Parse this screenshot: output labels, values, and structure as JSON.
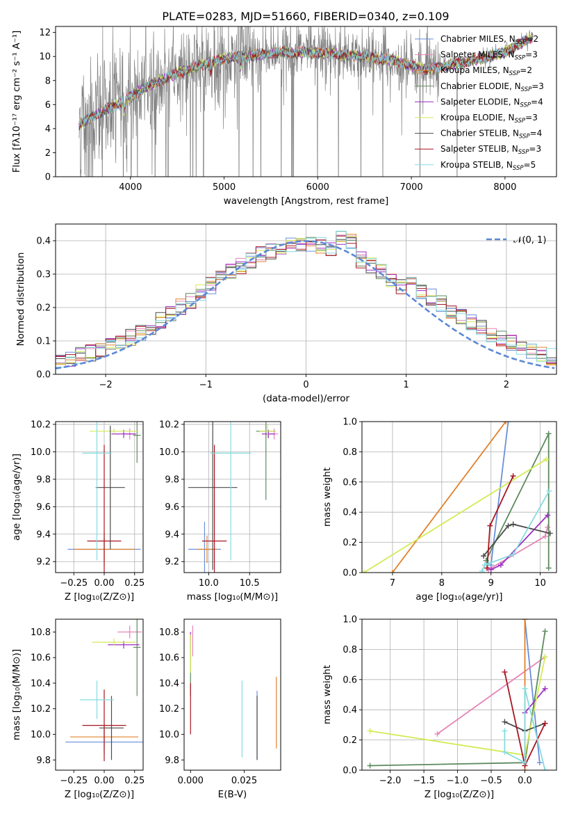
{
  "title": "PLATE=0283, MJD=51660, FIBERID=0340, z=0.109",
  "colors": {
    "Chabrier MILES": "#6a8fd9",
    "Salpeter MILES": "#e784b6",
    "Kroupa MILES": "#e0812a",
    "Chabrier ELODIE": "#5d8a5e",
    "Salpeter ELODIE": "#9b2fc4",
    "Kroupa ELODIE": "#d4ea55",
    "Chabrier STELIB": "#4a4a4a",
    "Salpeter STELIB": "#a81520",
    "Kroupa STELIB": "#86dbe0",
    "data": "#808080",
    "normal": "#5b88d6"
  },
  "legend": [
    {
      "imf": "Chabrier MILES",
      "n": "2"
    },
    {
      "imf": "Salpeter MILES",
      "n": "3"
    },
    {
      "imf": "Kroupa MILES",
      "n": "2"
    },
    {
      "imf": "Chabrier ELODIE",
      "n": "3"
    },
    {
      "imf": "Salpeter ELODIE",
      "n": "4"
    },
    {
      "imf": "Kroupa ELODIE",
      "n": "3"
    },
    {
      "imf": "Chabrier STELIB",
      "n": "4"
    },
    {
      "imf": "Salpeter STELIB",
      "n": "3"
    },
    {
      "imf": "Kroupa STELIB",
      "n": "5"
    }
  ],
  "chart_data": [
    {
      "type": "line",
      "panel": "spectrum",
      "title": "PLATE=0283, MJD=51660, FIBERID=0340, z=0.109",
      "xlabel": "wavelength [Angstrom, rest frame]",
      "ylabel": "Flux [fλ10⁻¹⁷ erg cm⁻² s⁻¹ A⁻¹]",
      "xlim": [
        3200,
        8550
      ],
      "ylim": [
        0,
        12.5
      ],
      "xticks": [
        "4000",
        "5000",
        "6000",
        "7000",
        "8000"
      ],
      "yticks": [
        "0",
        "2",
        "4",
        "6",
        "8",
        "10",
        "12"
      ],
      "continuum": {
        "x": [
          3450,
          3600,
          3800,
          4000,
          4200,
          4500,
          4800,
          5000,
          5300,
          5600,
          5900,
          6200,
          6500,
          6800,
          7000,
          7200,
          7400,
          7600,
          7800,
          8000,
          8150,
          8300
        ],
        "y": [
          4.3,
          5.0,
          5.8,
          6.6,
          7.6,
          8.6,
          9.4,
          9.8,
          10.1,
          10.3,
          10.35,
          10.2,
          10.0,
          9.7,
          9.2,
          8.9,
          9.3,
          9.6,
          9.9,
          10.4,
          11.0,
          11.6
        ]
      }
    },
    {
      "type": "line",
      "panel": "residual-distribution",
      "xlabel": "(data-model)/error",
      "ylabel": "Normed distribution",
      "xlim": [
        -2.5,
        2.5
      ],
      "ylim": [
        0,
        0.45
      ],
      "xticks": [
        "−2",
        "−1",
        "0",
        "1",
        "2"
      ],
      "yticks": [
        "0.0",
        "0.1",
        "0.2",
        "0.3",
        "0.4"
      ],
      "normal_label": "𝒩(0, 1)",
      "grid": true
    },
    {
      "type": "scatter",
      "panel": "age-vs-Z",
      "xlabel": "Z [log₁₀(Z/Z⊙)]",
      "ylabel": "age  [log₁₀(age/yr)]",
      "xlim": [
        -0.4,
        0.32
      ],
      "ylim": [
        9.12,
        10.22
      ],
      "xticks": [
        "−0.25",
        "0.00",
        "0.25"
      ],
      "yticks": [
        "9.2",
        "9.4",
        "9.6",
        "9.8",
        "10.0",
        "10.2"
      ],
      "points": [
        {
          "model": "Chabrier MILES",
          "x": 0.0,
          "y": 9.29,
          "xerr": 0.3,
          "yerr": 0.08
        },
        {
          "model": "Salpeter MILES",
          "x": 0.21,
          "y": 10.13,
          "xerr": 0.05,
          "yerr": 0.04
        },
        {
          "model": "Kroupa MILES",
          "x": 0.0,
          "y": 9.29,
          "xerr": 0.25,
          "yerr": 0.12
        },
        {
          "model": "Chabrier ELODIE",
          "x": 0.27,
          "y": 10.12,
          "xerr": 0.03,
          "yerr": 0.2
        },
        {
          "model": "Salpeter ELODIE",
          "x": 0.16,
          "y": 10.13,
          "xerr": 0.1,
          "yerr": 0.03
        },
        {
          "model": "Kroupa ELODIE",
          "x": 0.08,
          "y": 10.15,
          "xerr": 0.2,
          "yerr": 0.02
        },
        {
          "model": "Chabrier STELIB",
          "x": 0.05,
          "y": 9.74,
          "xerr": 0.12,
          "yerr": 0.45
        },
        {
          "model": "Salpeter STELIB",
          "x": 0.0,
          "y": 9.35,
          "xerr": 0.14,
          "yerr": 0.7
        },
        {
          "model": "Kroupa STELIB",
          "x": -0.06,
          "y": 9.99,
          "xerr": 0.12,
          "yerr": 0.78
        }
      ]
    },
    {
      "type": "scatter",
      "panel": "age-vs-mass",
      "xlabel": "mass [log₁₀(M/M⊙)]",
      "xlim": [
        9.7,
        10.88
      ],
      "ylim": [
        9.12,
        10.22
      ],
      "xticks": [
        "10.0",
        "10.5"
      ],
      "yticks": [
        "9.2",
        "9.4",
        "9.6",
        "9.8",
        "10.0",
        "10.2"
      ],
      "points": [
        {
          "model": "Chabrier MILES",
          "x": 9.95,
          "y": 9.29,
          "xerr": 0.2,
          "yerr": 0.2
        },
        {
          "model": "Salpeter MILES",
          "x": 10.8,
          "y": 10.13,
          "xerr": 0.05,
          "yerr": 0.04
        },
        {
          "model": "Kroupa MILES",
          "x": 9.98,
          "y": 9.29,
          "xerr": 0.12,
          "yerr": 0.1
        },
        {
          "model": "Chabrier ELODIE",
          "x": 10.7,
          "y": 10.15,
          "xerr": 0.12,
          "yerr": 0.5
        },
        {
          "model": "Salpeter ELODIE",
          "x": 10.73,
          "y": 10.13,
          "xerr": 0.08,
          "yerr": 0.03
        },
        {
          "model": "Kroupa ELODIE",
          "x": 10.72,
          "y": 10.15,
          "xerr": 0.1,
          "yerr": 0.05
        },
        {
          "model": "Chabrier STELIB",
          "x": 10.05,
          "y": 9.74,
          "xerr": 0.3,
          "yerr": 0.6
        },
        {
          "model": "Salpeter STELIB",
          "x": 10.07,
          "y": 9.35,
          "xerr": 0.15,
          "yerr": 0.7
        },
        {
          "model": "Kroupa STELIB",
          "x": 10.27,
          "y": 9.99,
          "xerr": 0.25,
          "yerr": 0.78
        }
      ]
    },
    {
      "type": "line",
      "panel": "mass-weight-vs-age",
      "xlabel": "age  [log₁₀(age/yr)]",
      "ylabel": "mass weight",
      "xlim": [
        6.38,
        10.33
      ],
      "ylim": [
        0,
        1
      ],
      "xticks": [
        "7",
        "8",
        "9",
        "10"
      ],
      "yticks": [
        "0.0",
        "0.2",
        "0.4",
        "0.6",
        "0.8",
        "1.0"
      ],
      "series": [
        {
          "model": "Chabrier MILES",
          "x": [
            9.0,
            9.35
          ],
          "y": [
            0.05,
            1.0
          ]
        },
        {
          "model": "Salpeter MILES",
          "x": [
            8.95,
            10.1,
            10.15
          ],
          "y": [
            0.02,
            0.24,
            0.3
          ]
        },
        {
          "model": "Kroupa MILES",
          "x": [
            7.0,
            9.3
          ],
          "y": [
            0.0,
            1.0
          ]
        },
        {
          "model": "Chabrier ELODIE",
          "x": [
            8.9,
            10.17,
            10.17
          ],
          "y": [
            0.08,
            0.92,
            0.03
          ]
        },
        {
          "model": "Salpeter ELODIE",
          "x": [
            9.0,
            9.2,
            10.15
          ],
          "y": [
            0.02,
            0.05,
            0.38
          ]
        },
        {
          "model": "Kroupa ELODIE",
          "x": [
            6.42,
            10.12
          ],
          "y": [
            0.0,
            0.75
          ]
        },
        {
          "model": "Chabrier STELIB",
          "x": [
            8.85,
            9.35,
            9.45,
            10.2
          ],
          "y": [
            0.11,
            0.31,
            0.32,
            0.26
          ]
        },
        {
          "model": "Salpeter STELIB",
          "x": [
            8.92,
            8.98,
            9.45
          ],
          "y": [
            0.03,
            0.31,
            0.64
          ]
        },
        {
          "model": "Kroupa STELIB",
          "x": [
            8.82,
            8.87,
            8.95,
            9.45,
            10.18
          ],
          "y": [
            0.01,
            0.05,
            0.06,
            0.12,
            0.54
          ]
        }
      ]
    },
    {
      "type": "scatter",
      "panel": "mass-vs-Z",
      "xlabel": "Z [log₁₀(Z/Z⊙)]",
      "ylabel": "mass [log₁₀(M/M⊙)]",
      "xlim": [
        -0.4,
        0.32
      ],
      "ylim": [
        9.72,
        10.9
      ],
      "xticks": [
        "−0.25",
        "0.00",
        "0.25"
      ],
      "yticks": [
        "9.8",
        "10.0",
        "10.2",
        "10.4",
        "10.6",
        "10.8"
      ],
      "points": [
        {
          "model": "Chabrier MILES",
          "x": 0.0,
          "y": 9.94,
          "xerr": 0.32,
          "yerr": 0.1
        },
        {
          "model": "Salpeter MILES",
          "x": 0.21,
          "y": 10.8,
          "xerr": 0.1,
          "yerr": 0.05
        },
        {
          "model": "Kroupa MILES",
          "x": 0.0,
          "y": 9.98,
          "xerr": 0.28,
          "yerr": 0.1
        },
        {
          "model": "Chabrier ELODIE",
          "x": 0.27,
          "y": 10.68,
          "xerr": 0.03,
          "yerr": 0.38
        },
        {
          "model": "Salpeter ELODIE",
          "x": 0.16,
          "y": 10.7,
          "xerr": 0.13,
          "yerr": 0.03
        },
        {
          "model": "Kroupa ELODIE",
          "x": 0.08,
          "y": 10.72,
          "xerr": 0.18,
          "yerr": 0.03
        },
        {
          "model": "Chabrier STELIB",
          "x": 0.06,
          "y": 10.05,
          "xerr": 0.1,
          "yerr": 0.25
        },
        {
          "model": "Salpeter STELIB",
          "x": 0.0,
          "y": 10.07,
          "xerr": 0.18,
          "yerr": 0.28
        },
        {
          "model": "Kroupa STELIB",
          "x": -0.06,
          "y": 10.27,
          "xerr": 0.14,
          "yerr": 0.15
        }
      ]
    },
    {
      "type": "scatter",
      "panel": "mass-vs-EBV",
      "xlabel": "E(B-V)",
      "xlim": [
        -0.003,
        0.042
      ],
      "ylim": [
        9.72,
        10.9
      ],
      "xticks": [
        "0.000",
        "0.025"
      ],
      "yticks": [
        "9.8",
        "10.0",
        "10.2",
        "10.4",
        "10.6",
        "10.8"
      ],
      "points": [
        {
          "model": "Chabrier MILES",
          "x": 0.031,
          "y": 10.07,
          "xerr": 0,
          "yerr": 0.27
        },
        {
          "model": "Salpeter MILES",
          "x": 0.001,
          "y": 10.73,
          "xerr": 0,
          "yerr": 0.12
        },
        {
          "model": "Kroupa MILES",
          "x": 0.04,
          "y": 10.17,
          "xerr": 0,
          "yerr": 0.28
        },
        {
          "model": "Chabrier ELODIE",
          "x": 0.0,
          "y": 10.5,
          "xerr": 0,
          "yerr": 0.2
        },
        {
          "model": "Salpeter ELODIE",
          "x": 0.0,
          "y": 10.75,
          "xerr": 0,
          "yerr": 0.05
        },
        {
          "model": "Kroupa ELODIE",
          "x": 0.0,
          "y": 10.63,
          "xerr": 0,
          "yerr": 0.15
        },
        {
          "model": "Chabrier STELIB",
          "x": 0.031,
          "y": 10.05,
          "xerr": 0,
          "yerr": 0.25
        },
        {
          "model": "Salpeter STELIB",
          "x": 0.0,
          "y": 10.2,
          "xerr": 0,
          "yerr": 0.2
        },
        {
          "model": "Kroupa STELIB",
          "x": 0.024,
          "y": 10.12,
          "xerr": 0,
          "yerr": 0.3
        }
      ]
    },
    {
      "type": "line",
      "panel": "mass-weight-vs-Z",
      "xlabel": "Z [log₁₀(Z/Z⊙)]",
      "ylabel": "mass weight",
      "xlim": [
        -2.42,
        0.47
      ],
      "ylim": [
        0,
        1
      ],
      "xticks": [
        "−2.0",
        "−1.5",
        "−1.0",
        "−0.5",
        "0.0"
      ],
      "yticks": [
        "0.0",
        "0.2",
        "0.4",
        "0.6",
        "0.8",
        "1.0"
      ],
      "series": [
        {
          "model": "Chabrier MILES",
          "x": [
            0.0,
            0.22
          ],
          "y": [
            1.0,
            0.05
          ]
        },
        {
          "model": "Salpeter MILES",
          "x": [
            -1.3,
            0.3
          ],
          "y": [
            0.24,
            0.75
          ]
        },
        {
          "model": "Kroupa MILES",
          "x": [
            0.0,
            0.0
          ],
          "y": [
            0.0,
            1.0
          ]
        },
        {
          "model": "Chabrier ELODIE",
          "x": [
            -2.3,
            0.0,
            0.3
          ],
          "y": [
            0.03,
            0.05,
            0.92
          ]
        },
        {
          "model": "Salpeter ELODIE",
          "x": [
            0.0,
            0.3
          ],
          "y": [
            0.38,
            0.54
          ]
        },
        {
          "model": "Kroupa ELODIE",
          "x": [
            -2.3,
            0.0,
            0.3
          ],
          "y": [
            0.26,
            0.1,
            0.75
          ]
        },
        {
          "model": "Chabrier STELIB",
          "x": [
            -0.3,
            0.0,
            0.3
          ],
          "y": [
            0.32,
            0.26,
            0.31
          ]
        },
        {
          "model": "Salpeter STELIB",
          "x": [
            -0.3,
            0.0,
            0.3
          ],
          "y": [
            0.65,
            0.03,
            0.31
          ]
        },
        {
          "model": "Kroupa STELIB",
          "x": [
            -0.3,
            -0.3,
            0.0,
            0.0,
            0.3
          ],
          "y": [
            0.26,
            0.12,
            0.05,
            0.54,
            0.0
          ]
        }
      ]
    }
  ]
}
